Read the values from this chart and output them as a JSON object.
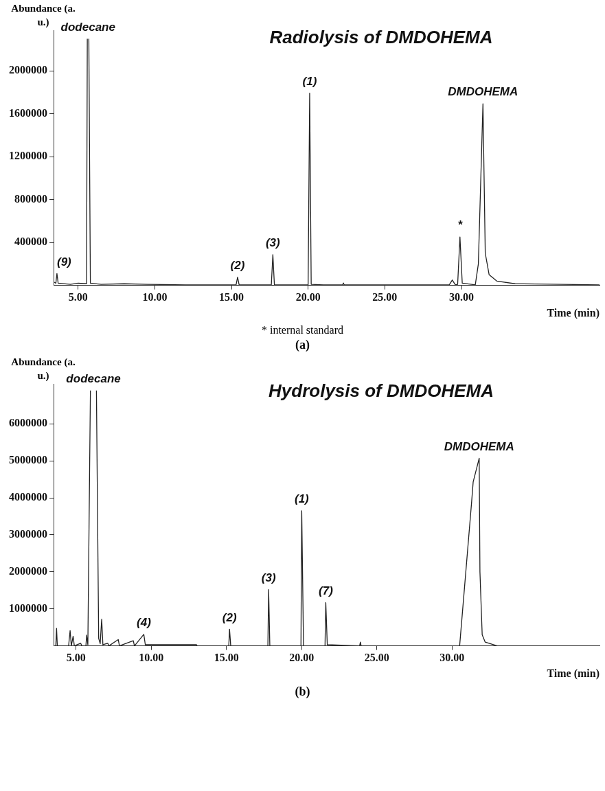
{
  "chart_data": [
    {
      "type": "line",
      "title": "Radiolysis of DMDOHEMA",
      "ylabel": "Abundance (a. u.)",
      "xlabel": "Time (min)",
      "color": "#222222",
      "x": [
        3.45,
        3.55,
        3.62,
        3.7,
        4.5,
        5.0,
        5.55,
        5.6,
        5.65,
        5.7,
        5.8,
        6.5,
        8.0,
        9.5,
        12,
        15.3,
        15.4,
        15.5,
        17.6,
        17.7,
        17.8,
        20.0,
        20.1,
        20.2,
        21,
        22.25,
        22.3,
        22.35,
        29.2,
        29.4,
        29.6,
        29.75,
        29.9,
        30.05,
        30.9,
        31.1,
        31.4,
        31.55,
        31.8,
        32.3,
        33.5,
        39
      ],
      "values": [
        30000,
        20000,
        110000,
        20000,
        10000,
        20000,
        15000,
        2300000,
        null,
        2300000,
        20000,
        10000,
        15000,
        10000,
        5000,
        5000,
        77000,
        5000,
        5000,
        287000,
        5000,
        5000,
        1793000,
        10000,
        5000,
        5000,
        22000,
        5000,
        5000,
        50000,
        5000,
        10000,
        452000,
        20000,
        5000,
        200000,
        1694000,
        300000,
        100000,
        40000,
        15000,
        5000
      ],
      "xlim": [
        3.4,
        39
      ],
      "ylim": [
        0,
        2380000
      ],
      "xticks": [
        {
          "value": 5,
          "label": "5.00"
        },
        {
          "value": 10,
          "label": "10.00"
        },
        {
          "value": 15,
          "label": "15.00"
        },
        {
          "value": 20,
          "label": "20.00"
        },
        {
          "value": 25,
          "label": "25.00"
        },
        {
          "value": 30,
          "label": "30.00"
        }
      ],
      "yticks": [
        400000,
        800000,
        1200000,
        1600000,
        2000000
      ],
      "annotations": [
        {
          "text": "(9)",
          "x": 3.62,
          "y": 110000
        },
        {
          "text": "dodecane",
          "x": 5.65,
          "y": 2300000
        },
        {
          "text": "(2)",
          "x": 15.4,
          "y": 77000
        },
        {
          "text": "(3)",
          "x": 17.7,
          "y": 287000
        },
        {
          "text": "(1)",
          "x": 20.1,
          "y": 1793000
        },
        {
          "text": "*",
          "x": 29.9,
          "y": 452000
        },
        {
          "text": "DMDOHEMA",
          "x": 31.4,
          "y": 1694000
        },
        "* internal standard",
        "(a)"
      ]
    },
    {
      "type": "line",
      "title": "Hydrolysis of DMDOHEMA",
      "ylabel": "Abundance (a. u.)",
      "xlabel": "Time (min)",
      "color": "#222222",
      "x": [
        3.5,
        3.65,
        3.7,
        3.75,
        4.5,
        4.6,
        4.68,
        4.8,
        4.88,
        5.3,
        5.38,
        5.65,
        5.7,
        5.78,
        5.95,
        6.15,
        6.35,
        6.5,
        6.6,
        6.7,
        6.78,
        7.1,
        7.18,
        7.8,
        7.88,
        8.8,
        8.88,
        9.5,
        9.6,
        13.0,
        13.05,
        15.15,
        15.2,
        15.28,
        17.75,
        17.8,
        17.88,
        19.95,
        20.0,
        20.12,
        21.55,
        21.6,
        21.7,
        23.85,
        23.9,
        23.95,
        30.5,
        31.3,
        31.4,
        31.8,
        31.85,
        32.0,
        32.2,
        33.0,
        39.8
      ],
      "values": [
        0,
        0,
        470000,
        0,
        0,
        410000,
        0,
        260000,
        0,
        70000,
        0,
        0,
        290000,
        30000,
        6900000,
        null,
        6900000,
        200000,
        60000,
        720000,
        30000,
        70000,
        0,
        170000,
        0,
        140000,
        0,
        310000,
        30000,
        30000,
        0,
        0,
        450000,
        0,
        0,
        1520000,
        0,
        0,
        3650000,
        0,
        0,
        1170000,
        30000,
        0,
        100000,
        0,
        0,
        3900000,
        4430000,
        5070000,
        2000000,
        300000,
        100000,
        0,
        0
      ],
      "xlim": [
        3.5,
        39.8
      ],
      "ylim": [
        0,
        7080000
      ],
      "xticks": [
        {
          "value": 5,
          "label": "5.00"
        },
        {
          "value": 10,
          "label": "10.00"
        },
        {
          "value": 15,
          "label": "15.00"
        },
        {
          "value": 20,
          "label": "20.00"
        },
        {
          "value": 25,
          "label": "25.00"
        },
        {
          "value": 30,
          "label": "30.00"
        }
      ],
      "yticks": [
        1000000,
        2000000,
        3000000,
        4000000,
        5000000,
        6000000
      ],
      "annotations": [
        {
          "text": "dodecane",
          "x": 6.15,
          "y": 6900000
        },
        {
          "text": "(4)",
          "x": 9.5,
          "y": 310000
        },
        {
          "text": "(2)",
          "x": 15.2,
          "y": 450000
        },
        {
          "text": "(3)",
          "x": 17.8,
          "y": 1520000
        },
        {
          "text": "(1)",
          "x": 20.0,
          "y": 3650000
        },
        {
          "text": "(7)",
          "x": 21.6,
          "y": 1170000
        },
        {
          "text": "DMDOHEMA",
          "x": 31.8,
          "y": 5070000
        },
        "(b)"
      ]
    }
  ]
}
